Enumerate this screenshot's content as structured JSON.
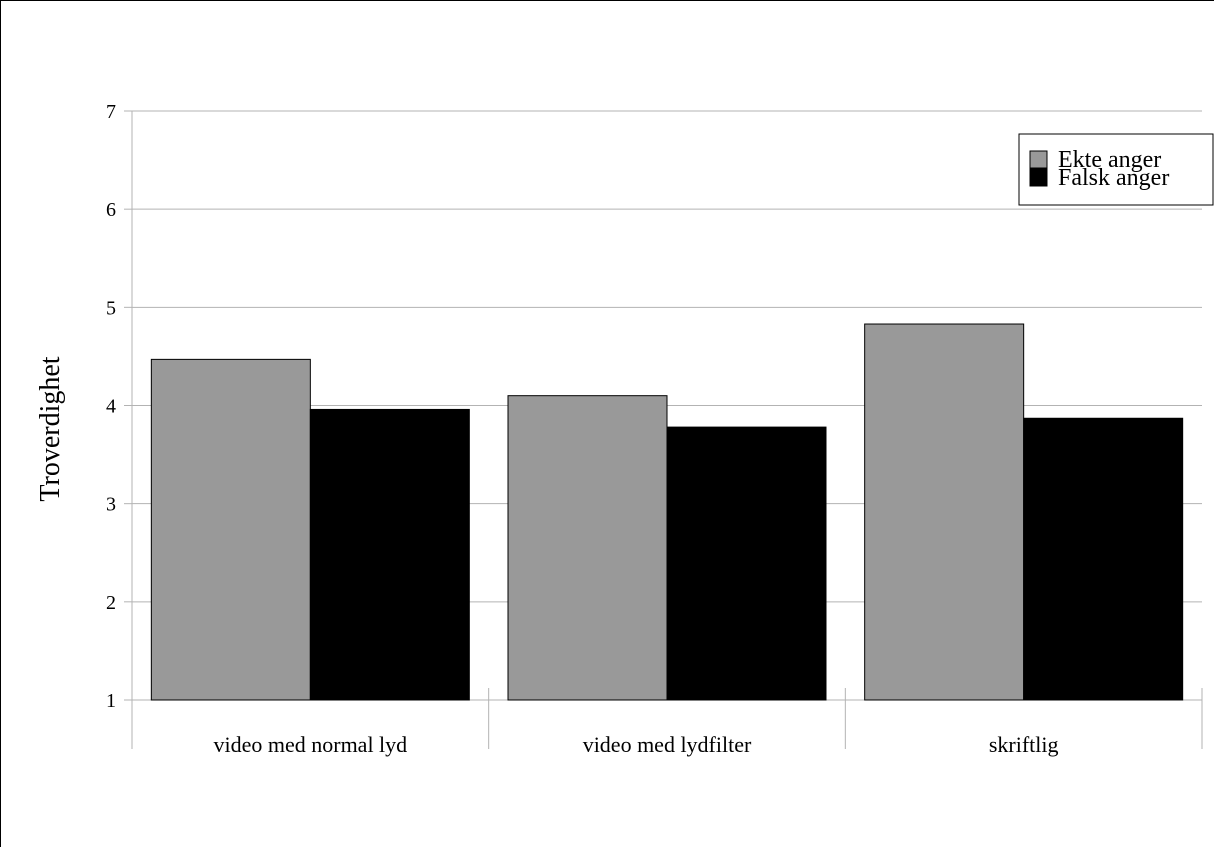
{
  "chart_data": {
    "type": "bar",
    "categories": [
      "video med normal lyd",
      "video med lydfilter",
      "skriftlig"
    ],
    "series": [
      {
        "name": "Ekte anger",
        "values": [
          4.47,
          4.1,
          4.83
        ],
        "color": "#999999"
      },
      {
        "name": "Falsk anger",
        "values": [
          3.96,
          3.78,
          3.87
        ],
        "color": "#000000"
      }
    ],
    "title": "",
    "xlabel": "",
    "ylabel": "Troverdighet",
    "ylim": [
      1,
      7
    ],
    "yticks": [
      "1",
      "2",
      "3",
      "4",
      "5",
      "6",
      "7"
    ],
    "grid": true,
    "legend_position": "top-right"
  }
}
